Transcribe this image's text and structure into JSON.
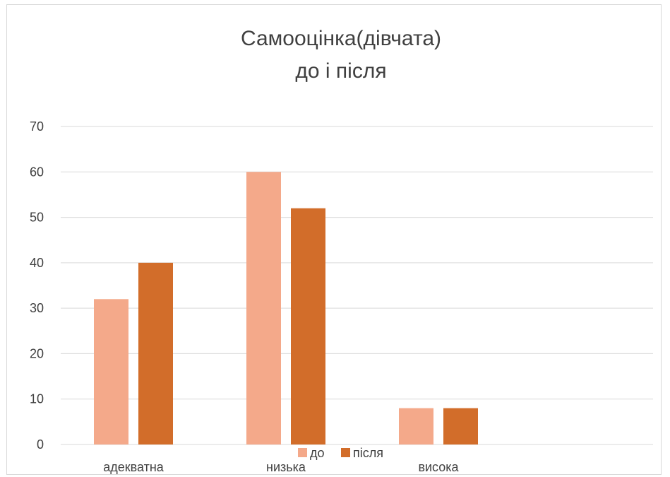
{
  "chart_data": {
    "type": "bar",
    "title": [
      "Самооцінка(дівчата)",
      "до і після"
    ],
    "categories": [
      "адекватна",
      "низька",
      "висока"
    ],
    "series": [
      {
        "name": "до",
        "values": [
          32,
          60,
          8
        ],
        "color": "#F4A98A"
      },
      {
        "name": "після",
        "values": [
          40,
          52,
          8
        ],
        "color": "#D26D2A"
      }
    ],
    "yticks": [
      0,
      10,
      20,
      30,
      40,
      50,
      60,
      70
    ],
    "ylim": [
      0,
      70
    ],
    "grid": true,
    "gridColor": "#d9d9d9",
    "legend": "bottom"
  }
}
